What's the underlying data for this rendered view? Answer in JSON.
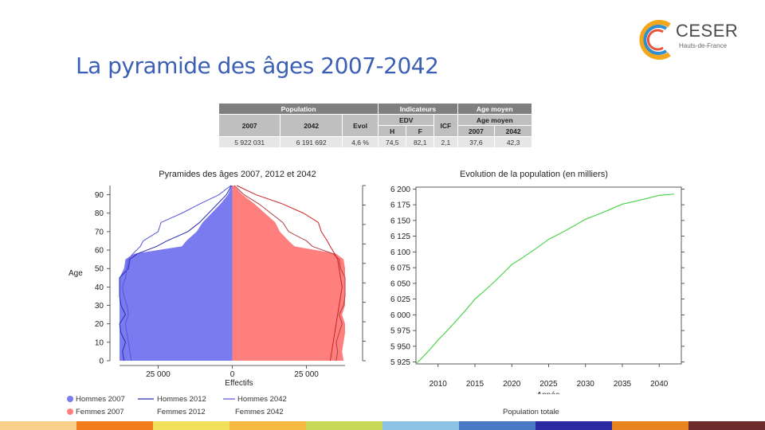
{
  "title": "La pyramide des âges 2007-2042",
  "logo": {
    "name": "CESER",
    "subtitle": "Hauts-de-France"
  },
  "table": {
    "headers": {
      "population": "Population",
      "indicators": "Indicateurs",
      "mean_age": "Age moyen"
    },
    "subheaders": {
      "col2007": "2007",
      "col2042": "2042",
      "evol": "Evol",
      "edv": "EDV",
      "h": "H",
      "f": "F",
      "icf": "ICF",
      "mean_age": "Age moyen",
      "age2007": "2007",
      "age2042": "2042"
    },
    "values": {
      "pop2007": "5 922 031",
      "pop2042": "6 191 692",
      "evol": "4,6 %",
      "edv_h": "74,5",
      "edv_f": "82,1",
      "icf": "2,1",
      "age2007": "37,6",
      "age2042": "42,3"
    }
  },
  "legend": {
    "hommes2007": "Hommes 2007",
    "hommes2012": "Hommes 2012",
    "hommes2042": "Hommes 2042",
    "femmes2007": "Femmes 2007",
    "femmes2012": "Femmes 2012",
    "femmes2042": "Femmes 2042",
    "pop_totale": "Population totale"
  },
  "colors": {
    "men_fill": "#7b7bf0",
    "women_fill": "#ff7f7f",
    "men_line2012": "#2a2ab0",
    "men_line2042": "#5555dd",
    "women_line2012": "#b04040",
    "women_line2042": "#cc2222",
    "pop_line": "#4dd44d",
    "title": "#3a5fb5"
  },
  "footer_colors": [
    "#f8d08a",
    "#f07c1c",
    "#f1e05a",
    "#f5b942",
    "#c8d95a",
    "#8ec3e6",
    "#4a78c4",
    "#2b2aa0",
    "#e8841f",
    "#6e2b2b"
  ],
  "chart_data": [
    {
      "type": "bar",
      "title": "Pyramides des âges 2007, 2012 et 2042",
      "xlabel": "Effectifs",
      "ylabel": "Age",
      "xticks": [
        "25 000",
        "0",
        "25 000"
      ],
      "xlim": [
        -38000,
        38000
      ],
      "yticks": [
        "0",
        "10",
        "20",
        "30",
        "40",
        "50",
        "60",
        "70",
        "80",
        "90"
      ],
      "ylim": [
        0,
        95
      ],
      "ages": [
        0,
        5,
        10,
        15,
        20,
        25,
        30,
        35,
        40,
        45,
        50,
        55,
        58,
        62,
        65,
        70,
        75,
        80,
        85,
        90,
        95
      ],
      "series": [
        {
          "name": "Hommes 2007",
          "values": [
            -39000,
            -38500,
            -39000,
            -40000,
            -41000,
            -38000,
            -39500,
            -40500,
            -40000,
            -38500,
            -36500,
            -36000,
            -33000,
            -17000,
            -15500,
            -12000,
            -10000,
            -7000,
            -4000,
            -1500,
            -200
          ]
        },
        {
          "name": "Femmes 2007",
          "values": [
            37500,
            37000,
            37500,
            38500,
            40000,
            37000,
            38500,
            40000,
            40500,
            39500,
            38000,
            37500,
            35000,
            21000,
            19000,
            16000,
            14500,
            11000,
            7500,
            3500,
            500
          ]
        },
        {
          "name": "Hommes 2012",
          "values": [
            -36500,
            -37000,
            -36000,
            -37500,
            -38500,
            -36000,
            -37500,
            -38000,
            -39000,
            -38000,
            -35000,
            -34500,
            -32000,
            -25500,
            -22000,
            -15000,
            -11000,
            -8000,
            -5000,
            -2000,
            -300
          ]
        },
        {
          "name": "Hommes 2042",
          "values": [
            -34000,
            -34500,
            -35000,
            -35500,
            -36000,
            -35000,
            -35500,
            -36500,
            -37000,
            -36000,
            -35500,
            -35000,
            -33500,
            -31000,
            -30000,
            -25000,
            -24000,
            -17000,
            -11000,
            -4500,
            -500
          ]
        },
        {
          "name": "Femmes 2012",
          "values": [
            35000,
            35500,
            35000,
            36000,
            37000,
            36000,
            37500,
            38000,
            38500,
            38000,
            36500,
            36000,
            34000,
            27000,
            25000,
            19000,
            17000,
            13000,
            9000,
            4000,
            700
          ]
        },
        {
          "name": "Femmes 2042",
          "values": [
            33000,
            33500,
            34000,
            34500,
            35000,
            35500,
            36000,
            36500,
            37000,
            36500,
            36000,
            35500,
            34500,
            33000,
            32000,
            30000,
            29000,
            24000,
            17000,
            8000,
            1500
          ]
        }
      ]
    },
    {
      "type": "line",
      "title": "Evolution de la population (en milliers)",
      "xlabel": "Année",
      "ylabel": "",
      "xticks": [
        "2010",
        "2015",
        "2020",
        "2025",
        "2030",
        "2035",
        "2040"
      ],
      "yticks": [
        "5 925",
        "5 950",
        "5 975",
        "6 000",
        "6 025",
        "6 050",
        "6 075",
        "6 100",
        "6 125",
        "6 150",
        "6 175",
        "6 200"
      ],
      "xlim": [
        2007,
        2043
      ],
      "ylim": [
        5922,
        6203
      ],
      "series": [
        {
          "name": "Population totale",
          "x": [
            2007,
            2010,
            2015,
            2020,
            2025,
            2030,
            2035,
            2040,
            2042
          ],
          "y": [
            5922,
            5960,
            6025,
            6080,
            6120,
            6152,
            6176,
            6190,
            6192
          ]
        }
      ]
    }
  ]
}
